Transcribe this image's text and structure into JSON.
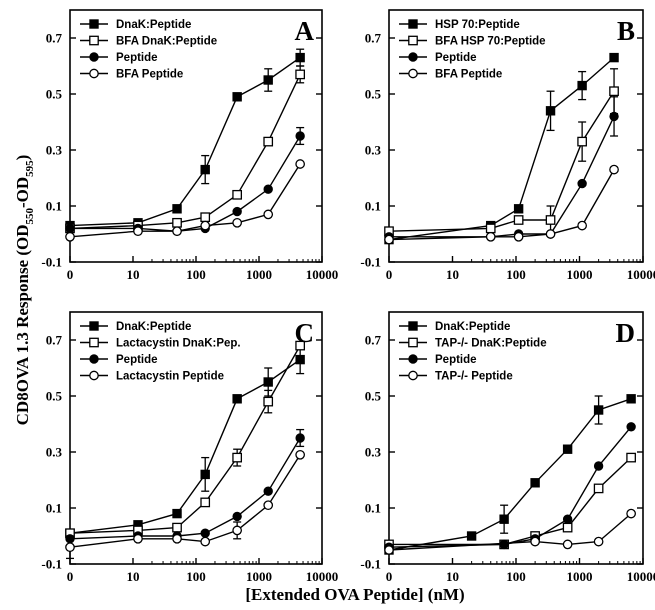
{
  "figure": {
    "ylabel_main": "CD8OVA 1.3 Response (OD",
    "ylabel_sub1": "550",
    "ylabel_mid": "-OD",
    "ylabel_sub2": "595",
    "ylabel_end": ")",
    "xlabel": "[Extended OVA Peptide] (nM)"
  },
  "chart_data": [
    {
      "type": "line",
      "panel": "A",
      "xscale": "log (0 shown at left edge)",
      "xticks": [
        "0",
        "10",
        "100",
        "1000",
        "10000"
      ],
      "yticks": [
        "-0.1",
        "0.1",
        "0.3",
        "0.5",
        "0.7"
      ],
      "ylim": [
        -0.1,
        0.8
      ],
      "legend_position": "top-left",
      "series": [
        {
          "name": "DnaK:Peptide",
          "marker": "filled-square",
          "x": [
            0,
            12,
            50,
            140,
            450,
            1400,
            4500
          ],
          "y": [
            0.03,
            0.04,
            0.09,
            0.23,
            0.49,
            0.55,
            0.63
          ],
          "err": [
            0,
            0,
            0,
            0.05,
            0,
            0.04,
            0.03
          ]
        },
        {
          "name": "BFA DnaK:Peptide",
          "marker": "open-square",
          "x": [
            0,
            12,
            50,
            140,
            450,
            1400,
            4500
          ],
          "y": [
            0.02,
            0.03,
            0.04,
            0.06,
            0.14,
            0.33,
            0.57
          ],
          "err": [
            0,
            0,
            0,
            0,
            0,
            0,
            0.03
          ]
        },
        {
          "name": "Peptide",
          "marker": "filled-circle",
          "x": [
            0,
            12,
            50,
            140,
            450,
            1400,
            4500
          ],
          "y": [
            0.02,
            0.02,
            0.01,
            0.02,
            0.08,
            0.16,
            0.35
          ],
          "err": [
            0,
            0,
            0,
            0,
            0,
            0,
            0.03
          ]
        },
        {
          "name": "BFA Peptide",
          "marker": "open-circle",
          "x": [
            0,
            12,
            50,
            140,
            450,
            1400,
            4500
          ],
          "y": [
            -0.01,
            0.01,
            0.01,
            0.03,
            0.04,
            0.07,
            0.25
          ],
          "err": [
            0,
            0,
            0,
            0,
            0,
            0,
            0
          ]
        }
      ]
    },
    {
      "type": "line",
      "panel": "B",
      "xscale": "log (0 shown at left edge)",
      "xticks": [
        "0",
        "10",
        "100",
        "1000",
        "10000"
      ],
      "yticks": [
        "-0.1",
        "0.1",
        "0.3",
        "0.5",
        "0.7"
      ],
      "ylim": [
        -0.1,
        0.8
      ],
      "legend_position": "top-left",
      "series": [
        {
          "name": "HSP 70:Peptide",
          "marker": "filled-square",
          "x": [
            0,
            40,
            110,
            350,
            1100,
            3500
          ],
          "y": [
            -0.02,
            0.03,
            0.09,
            0.44,
            0.53,
            0.63
          ],
          "err": [
            0,
            0,
            0,
            0.07,
            0.05,
            0
          ]
        },
        {
          "name": "BFA HSP 70:Peptide",
          "marker": "open-square",
          "x": [
            0,
            40,
            110,
            350,
            1100,
            3500
          ],
          "y": [
            0.01,
            0.02,
            0.05,
            0.05,
            0.33,
            0.51
          ],
          "err": [
            0,
            0,
            0,
            0.05,
            0.07,
            0.08
          ]
        },
        {
          "name": "Peptide",
          "marker": "filled-circle",
          "x": [
            0,
            40,
            110,
            350,
            1100,
            3500
          ],
          "y": [
            -0.01,
            -0.01,
            0.0,
            0.0,
            0.18,
            0.42
          ],
          "err": [
            0,
            0,
            0,
            0,
            0,
            0.07
          ]
        },
        {
          "name": "BFA Peptide",
          "marker": "open-circle",
          "x": [
            0,
            40,
            110,
            350,
            1100,
            3500
          ],
          "y": [
            -0.02,
            -0.01,
            -0.01,
            0.0,
            0.03,
            0.23
          ],
          "err": [
            0,
            0,
            0,
            0,
            0,
            0
          ]
        }
      ]
    },
    {
      "type": "line",
      "panel": "C",
      "xscale": "log (0 shown at left edge)",
      "xticks": [
        "0",
        "10",
        "100",
        "1000",
        "10000"
      ],
      "yticks": [
        "-0.1",
        "0.1",
        "0.3",
        "0.5",
        "0.7"
      ],
      "ylim": [
        -0.1,
        0.8
      ],
      "legend_position": "top-left",
      "series": [
        {
          "name": "DnaK:Peptide",
          "marker": "filled-square",
          "x": [
            0,
            12,
            50,
            140,
            450,
            1400,
            4500
          ],
          "y": [
            0.01,
            0.04,
            0.08,
            0.22,
            0.49,
            0.55,
            0.63
          ],
          "err": [
            0,
            0,
            0,
            0.06,
            0,
            0.05,
            0.05
          ]
        },
        {
          "name": "Lactacystin DnaK:Pep.",
          "marker": "open-square",
          "x": [
            0,
            12,
            50,
            140,
            450,
            1400,
            4500
          ],
          "y": [
            0.01,
            0.02,
            0.03,
            0.12,
            0.28,
            0.48,
            0.68
          ],
          "err": [
            0,
            0,
            0,
            0,
            0.03,
            0.04,
            0
          ]
        },
        {
          "name": "Peptide",
          "marker": "filled-circle",
          "x": [
            0,
            12,
            50,
            140,
            450,
            1400,
            4500
          ],
          "y": [
            -0.01,
            0.0,
            0.0,
            0.01,
            0.07,
            0.16,
            0.35
          ],
          "err": [
            0,
            0,
            0,
            0,
            0,
            0,
            0.03
          ]
        },
        {
          "name": "Lactacystin Peptide",
          "marker": "open-circle",
          "x": [
            0,
            12,
            50,
            140,
            450,
            1400,
            4500
          ],
          "y": [
            -0.04,
            -0.01,
            -0.01,
            -0.02,
            0.02,
            0.11,
            0.29
          ],
          "err": [
            0.04,
            0,
            0,
            0,
            0.03,
            0,
            0
          ]
        }
      ]
    },
    {
      "type": "line",
      "panel": "D",
      "xscale": "log (0 shown at left edge)",
      "xticks": [
        "0",
        "10",
        "100",
        "1000",
        "10000"
      ],
      "yticks": [
        "-0.1",
        "0.1",
        "0.3",
        "0.5",
        "0.7"
      ],
      "ylim": [
        -0.1,
        0.8
      ],
      "legend_position": "top-left",
      "series": [
        {
          "name": "DnaK:Peptide",
          "marker": "filled-square",
          "x": [
            0,
            20,
            65,
            200,
            650,
            2000,
            6500
          ],
          "y": [
            -0.05,
            0.0,
            0.06,
            0.19,
            0.31,
            0.45,
            0.49
          ],
          "err": [
            0,
            0,
            0.05,
            0,
            0,
            0.05,
            0
          ]
        },
        {
          "name": "TAP-/- DnaK:Peptide",
          "marker": "open-square",
          "x": [
            0,
            65,
            200,
            650,
            2000,
            6500
          ],
          "y": [
            -0.03,
            -0.03,
            0.0,
            0.03,
            0.17,
            0.28
          ],
          "err": [
            0,
            0,
            0,
            0,
            0,
            0
          ]
        },
        {
          "name": "Peptide",
          "marker": "filled-circle",
          "x": [
            0,
            65,
            200,
            650,
            2000,
            6500
          ],
          "y": [
            -0.04,
            -0.03,
            -0.01,
            0.06,
            0.25,
            0.39
          ],
          "err": [
            0,
            0,
            0,
            0,
            0,
            0
          ]
        },
        {
          "name": "TAP-/- Peptide",
          "marker": "open-circle",
          "x": [
            0,
            200,
            650,
            2000,
            6500
          ],
          "y": [
            -0.05,
            -0.02,
            -0.03,
            -0.02,
            0.08
          ],
          "err": [
            0,
            0,
            0,
            0,
            0
          ]
        }
      ]
    }
  ]
}
